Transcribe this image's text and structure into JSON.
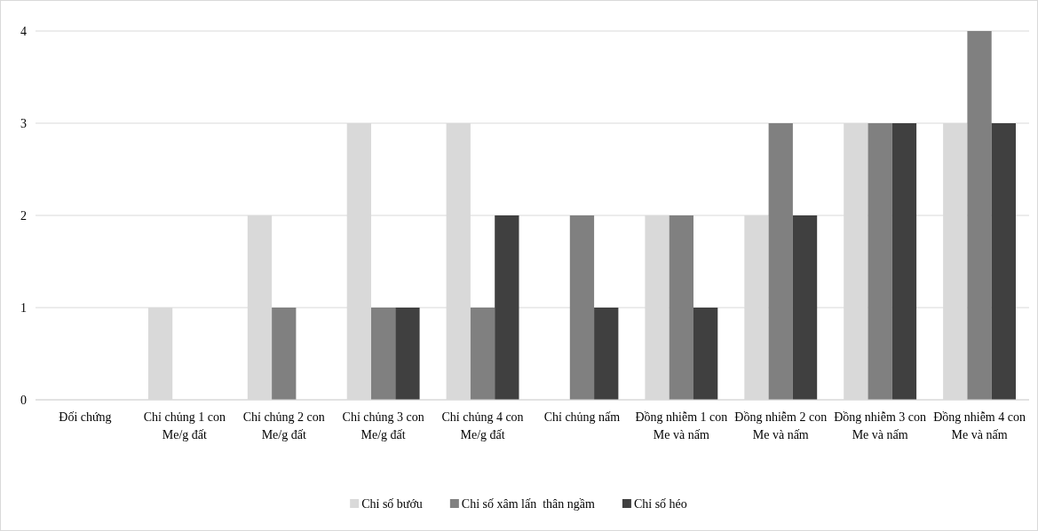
{
  "chart_data": {
    "type": "bar",
    "categories": [
      "Đối chứng",
      "Chỉ chủng 1 con Me/g đất",
      "Chỉ chủng 2 con Me/g đất",
      "Chỉ chủng 3 con Me/g đất",
      "Chỉ chủng 4 con Me/g đất",
      "Chỉ chủng nấm",
      "Đồng nhiễm 1 con Me và nấm",
      "Đồng nhiễm 2 con Me và nấm",
      "Đồng nhiễm 3 con Me và nấm",
      "Đồng nhiễm 4 con Me và nấm"
    ],
    "series": [
      {
        "name": "Chỉ số bướu",
        "color": "#d9d9d9",
        "values": [
          0,
          1,
          2,
          3,
          3,
          0,
          2,
          2,
          3,
          3
        ]
      },
      {
        "name": "Chỉ số xâm lấn  thân ngầm",
        "color": "#808080",
        "values": [
          0,
          0,
          1,
          1,
          1,
          2,
          2,
          3,
          3,
          4
        ]
      },
      {
        "name": "Chỉ số héo",
        "color": "#404040",
        "values": [
          0,
          0,
          0,
          1,
          2,
          1,
          1,
          2,
          3,
          3
        ]
      }
    ],
    "ylim": [
      0,
      4
    ],
    "yticks": [
      0,
      1,
      2,
      3,
      4
    ],
    "grid": "y",
    "legend": "bottom"
  }
}
